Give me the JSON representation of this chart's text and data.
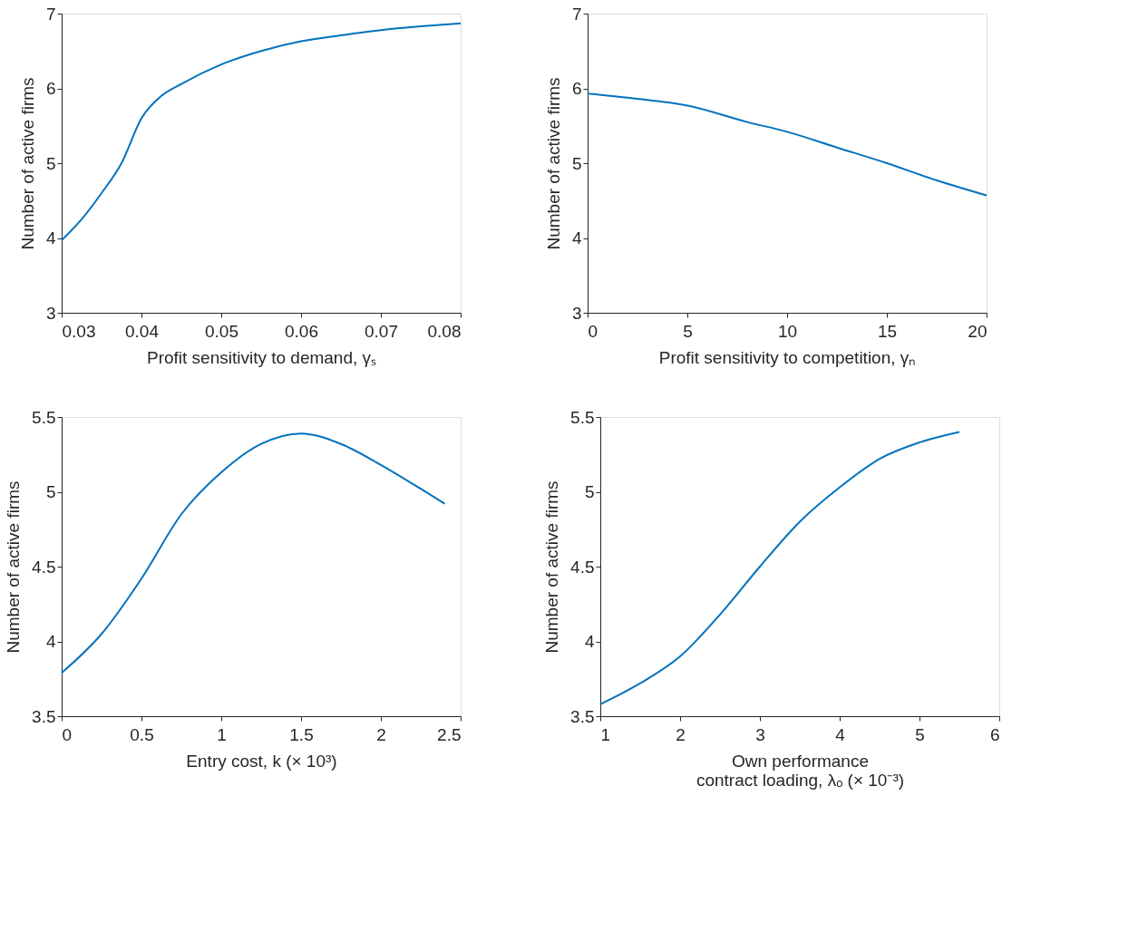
{
  "chart_data": [
    {
      "type": "line",
      "xlabel": "Profit sensitivity to demand,  γₛ",
      "ylabel": "Number of active firms",
      "xlim": [
        0.03,
        0.08
      ],
      "xticks": [
        0.03,
        0.04,
        0.05,
        0.06,
        0.07,
        0.08
      ],
      "ylim": [
        3,
        7
      ],
      "yticks": [
        3,
        4,
        5,
        6,
        7
      ],
      "grid": false,
      "series": [
        {
          "color": "#0072bd",
          "x": [
            0.03,
            0.0325,
            0.035,
            0.0375,
            0.04,
            0.0425,
            0.045,
            0.05,
            0.055,
            0.06,
            0.065,
            0.07,
            0.075,
            0.08
          ],
          "values": [
            3.97,
            4.25,
            4.6,
            5.0,
            5.6,
            5.9,
            6.06,
            6.32,
            6.5,
            6.63,
            6.71,
            6.78,
            6.83,
            6.87
          ]
        }
      ]
    },
    {
      "type": "line",
      "xlabel": "Profit sensitivity to competition,  γₙ",
      "ylabel": "Number of active firms",
      "xlim": [
        0,
        20
      ],
      "xticks": [
        0,
        5,
        10,
        15,
        20
      ],
      "ylim": [
        3,
        7
      ],
      "yticks": [
        3,
        4,
        5,
        6,
        7
      ],
      "grid": false,
      "series": [
        {
          "color": "#0072bd",
          "x": [
            0,
            2.5,
            5,
            8,
            10,
            12.5,
            15,
            17.5,
            20
          ],
          "values": [
            5.93,
            5.86,
            5.77,
            5.55,
            5.42,
            5.21,
            5.0,
            4.77,
            4.57
          ]
        }
      ]
    },
    {
      "type": "line",
      "xlabel": "Entry cost, k (× 10³)",
      "ylabel": "Number of active firms",
      "xlim": [
        0,
        2.5
      ],
      "xticks": [
        0,
        0.5,
        1,
        1.5,
        2,
        2.5
      ],
      "ylim": [
        3.5,
        5.5
      ],
      "yticks": [
        3.5,
        4,
        4.5,
        5,
        5.5
      ],
      "grid": false,
      "series": [
        {
          "color": "#0072bd",
          "x": [
            0,
            0.25,
            0.5,
            0.75,
            1,
            1.25,
            1.5,
            1.75,
            2,
            2.25,
            2.4
          ],
          "values": [
            3.79,
            4.05,
            4.42,
            4.85,
            5.13,
            5.32,
            5.39,
            5.32,
            5.18,
            5.02,
            4.92
          ]
        }
      ]
    },
    {
      "type": "line",
      "xlabel": "Own performance\ncontract loading,  λₒ (× 10⁻³)",
      "ylabel": "Number of active firms",
      "xlim": [
        1,
        6
      ],
      "xticks": [
        1,
        2,
        3,
        4,
        5,
        6
      ],
      "ylim": [
        3.5,
        5.5
      ],
      "yticks": [
        3.5,
        4,
        4.5,
        5,
        5.5
      ],
      "grid": false,
      "series": [
        {
          "color": "#0072bd",
          "x": [
            1,
            1.5,
            2,
            2.5,
            3,
            3.5,
            4,
            4.5,
            5,
            5.5
          ],
          "values": [
            3.58,
            3.72,
            3.9,
            4.18,
            4.5,
            4.8,
            5.03,
            5.22,
            5.33,
            5.4
          ]
        }
      ]
    }
  ]
}
